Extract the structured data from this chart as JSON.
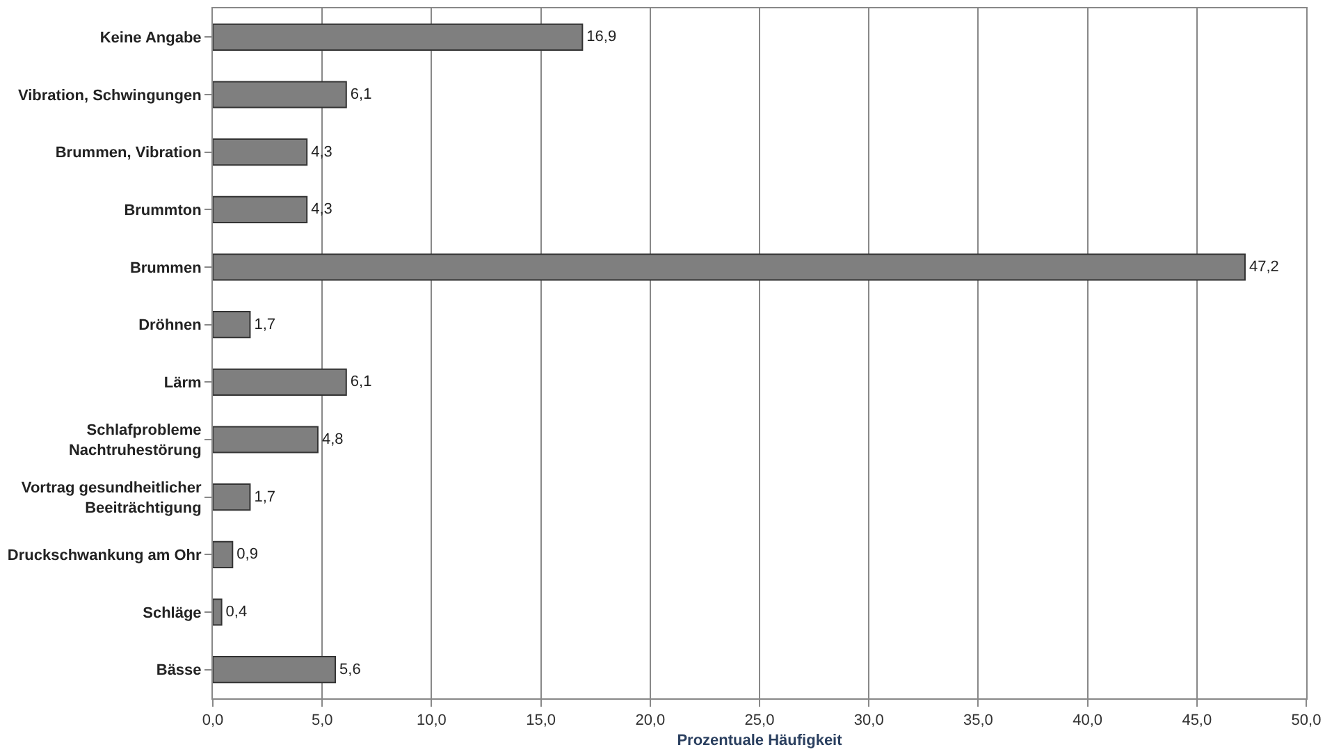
{
  "chart_data": {
    "type": "bar",
    "orientation": "horizontal",
    "xlabel": "Prozentuale Häufigkeit",
    "categories": [
      "Keine Angabe",
      "Vibration, Schwingungen",
      "Brummen, Vibration",
      "Brummton",
      "Brummen",
      "Dröhnen",
      "Lärm",
      "Schlafprobleme\nNachtruhestörung",
      "Vortrag gesundheitlicher\nBeeiträchtigung",
      "Druckschwankung am Ohr",
      "Schläge",
      "Bässe"
    ],
    "values": [
      16.9,
      6.1,
      4.3,
      4.3,
      47.2,
      1.7,
      6.1,
      4.8,
      1.7,
      0.9,
      0.4,
      5.6
    ],
    "value_labels": [
      "16,9",
      "6,1",
      "4,3",
      "4,3",
      "47,2",
      "1,7",
      "6,1",
      "4,8",
      "1,7",
      "0,9",
      "0,4",
      "5,6"
    ],
    "color": "#7f7f7f",
    "xlim": [
      0,
      50
    ],
    "xticks": [
      {
        "value": 0,
        "label": "0,0"
      },
      {
        "value": 5,
        "label": "5,0"
      },
      {
        "value": 10,
        "label": "10,0"
      },
      {
        "value": 15,
        "label": "15,0"
      },
      {
        "value": 20,
        "label": "20,0"
      },
      {
        "value": 25,
        "label": "25,0"
      },
      {
        "value": 30,
        "label": "30,0"
      },
      {
        "value": 35,
        "label": "35,0"
      },
      {
        "value": 40,
        "label": "40,0"
      },
      {
        "value": 45,
        "label": "45,0"
      },
      {
        "value": 50,
        "label": "50,0"
      }
    ],
    "grid": "x",
    "legend": false
  }
}
